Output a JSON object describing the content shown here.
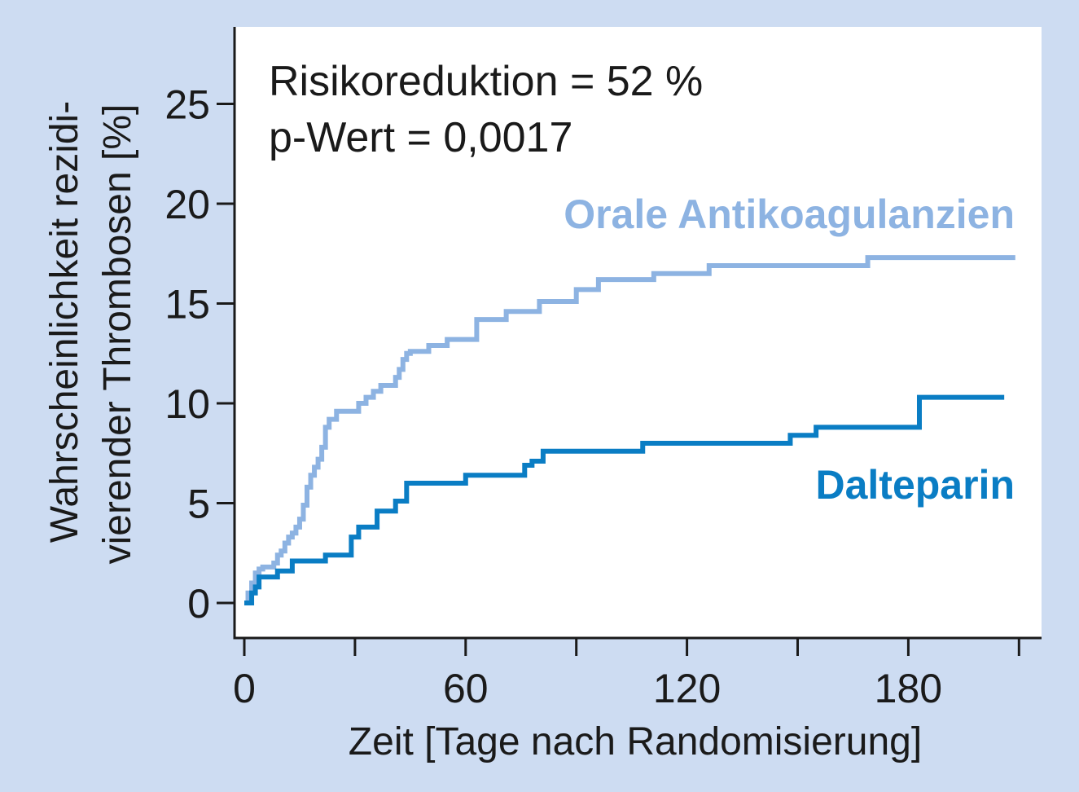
{
  "colors": {
    "background": "#cddcf2",
    "plot_background": "#ffffff",
    "axis": "#1a1a1a",
    "orale_series": "#8db3e2",
    "dalteparin_series": "#0a7dc4"
  },
  "chart_data": {
    "type": "line",
    "line_style": "step",
    "xlabel": "Zeit [Tage nach Randomisierung]",
    "ylabel_line1": "Wahrscheinlichkeit rezidi-",
    "ylabel_line2": "vierender Thrombosen [%]",
    "xlim": [
      0,
      210
    ],
    "ylim": [
      -1.5,
      28
    ],
    "x_ticks": [
      0,
      30,
      60,
      90,
      120,
      150,
      180,
      210
    ],
    "x_tick_labels": [
      "0",
      "",
      "60",
      "",
      "120",
      "",
      "180",
      ""
    ],
    "y_ticks": [
      0,
      5,
      10,
      15,
      20,
      25
    ],
    "y_tick_labels": [
      "0",
      "5",
      "10",
      "15",
      "20",
      "25"
    ],
    "grid": false,
    "annotations": {
      "risk_reduction": "Risikoreduktion = 52 %",
      "p_value": "p-Wert = 0,0017"
    },
    "series": [
      {
        "name": "Orale Antikoagulanzien",
        "x": [
          0,
          1,
          2,
          3,
          4,
          5,
          8,
          9,
          10,
          11,
          12,
          13,
          14,
          15,
          16,
          17,
          18,
          19,
          20,
          21,
          22,
          23,
          25,
          31,
          33,
          35,
          37,
          41,
          42,
          43,
          44,
          45,
          50,
          55,
          63,
          71,
          80,
          90,
          96,
          111,
          126,
          169,
          209
        ],
        "y": [
          0,
          0.5,
          1.0,
          1.5,
          1.7,
          1.8,
          2.0,
          2.4,
          2.6,
          3.0,
          3.3,
          3.5,
          3.8,
          4.2,
          4.9,
          5.8,
          6.4,
          6.8,
          7.2,
          7.8,
          8.8,
          9.2,
          9.6,
          10.0,
          10.3,
          10.6,
          10.9,
          11.3,
          11.7,
          12.2,
          12.5,
          12.6,
          12.9,
          13.2,
          14.2,
          14.6,
          15.1,
          15.7,
          16.2,
          16.5,
          16.9,
          17.3,
          17.3
        ]
      },
      {
        "name": "Dalteparin",
        "x": [
          0,
          2,
          3,
          4,
          9,
          13,
          22,
          29,
          31,
          36,
          41,
          44,
          60,
          76,
          78,
          81,
          108,
          148,
          155,
          183,
          206
        ],
        "y": [
          0,
          0.5,
          0.8,
          1.3,
          1.6,
          2.1,
          2.4,
          3.3,
          3.8,
          4.6,
          5.1,
          6.0,
          6.4,
          6.9,
          7.1,
          7.6,
          8.0,
          8.4,
          8.8,
          10.3,
          10.3
        ]
      }
    ]
  }
}
